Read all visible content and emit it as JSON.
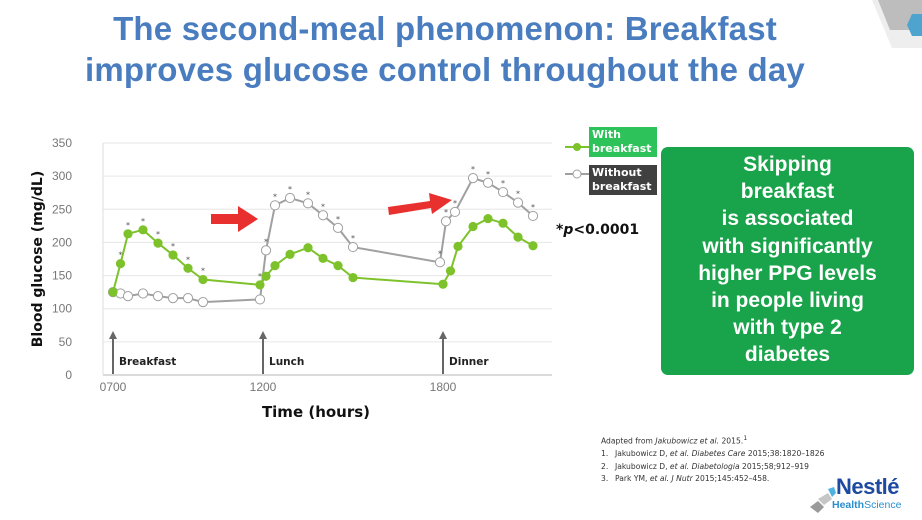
{
  "slide": {
    "title_line1": "The second-meal phenomenon: Breakfast",
    "title_line2": "improves glucose control throughout the day",
    "colors": {
      "title": "#4a7dbf",
      "with_breakfast": "#7dc22b",
      "without_breakfast": "#a0a0a0",
      "callout_bg": "#19a34a",
      "arrow": "#e8302f"
    }
  },
  "legend": {
    "with_label_1": "With",
    "with_label_2": "breakfast",
    "without_label_1": "Without",
    "without_label_2": "breakfast"
  },
  "significance": {
    "star": "*",
    "p": "p",
    "value": "<0.0001"
  },
  "callout": {
    "lines": [
      "Skipping",
      "breakfast",
      "is associated",
      "with significantly",
      "higher PPG levels",
      "in people living",
      "with type 2",
      "diabetes"
    ]
  },
  "references": {
    "adapted_prefix": "Adapted from ",
    "adapted_author": "Jakubowicz et al.",
    "adapted_year": " 2015.",
    "adapted_sup": "1",
    "items": [
      {
        "num": "1.",
        "author": "Jakubowicz D, ",
        "etal": "et al.",
        "journal": " Diabetes Care",
        "rest": " 2015;38:1820–1826"
      },
      {
        "num": "2.",
        "author": "Jakubowicz D, ",
        "etal": "et al.",
        "journal": " Diabetologia",
        "rest": " 2015;58;912–919"
      },
      {
        "num": "3.",
        "author": "Park YM, ",
        "etal": "et al.",
        "journal": " J Nutr",
        "rest": " 2015;145:452–458."
      }
    ]
  },
  "logo": {
    "brand": "Nestlé",
    "sub_bold": "Health",
    "sub_normal": "Science"
  },
  "chart_data": {
    "type": "line",
    "title": "",
    "xlabel": "Time (hours)",
    "ylabel": "Blood glucose (mg/dL)",
    "ylim": [
      0,
      350
    ],
    "yticks": [
      0,
      50,
      100,
      150,
      200,
      250,
      300,
      350
    ],
    "xticks": [
      "0700",
      "1200",
      "1800"
    ],
    "grid": true,
    "legend_position": "right",
    "meal_markers": [
      {
        "label": "Breakfast",
        "time": "0700"
      },
      {
        "label": "Lunch",
        "time": "1200"
      },
      {
        "label": "Dinner",
        "time": "1800"
      }
    ],
    "annotation": "*p<0.0001",
    "series": [
      {
        "name": "With breakfast",
        "color": "#7dc22b",
        "marker": "filled-circle",
        "x_hours": [
          7.0,
          7.25,
          7.5,
          8.0,
          8.5,
          9.0,
          9.5,
          10.0,
          11.9,
          12.1,
          12.4,
          12.9,
          13.5,
          14.0,
          14.5,
          15.0,
          18.0,
          18.25,
          18.5,
          19.0,
          19.5,
          20.0,
          20.5,
          21.0
        ],
        "values": [
          125,
          168,
          213,
          219,
          199,
          181,
          161,
          144,
          136,
          149,
          165,
          182,
          192,
          176,
          165,
          147,
          137,
          157,
          194,
          224,
          236,
          229,
          208,
          195
        ]
      },
      {
        "name": "Without breakfast",
        "color": "#a0a0a0",
        "marker": "open-circle",
        "x_hours": [
          7.0,
          7.25,
          7.5,
          8.0,
          8.5,
          9.0,
          9.5,
          10.0,
          11.9,
          12.1,
          12.4,
          12.9,
          13.5,
          14.0,
          14.5,
          15.0,
          17.9,
          18.1,
          18.4,
          19.0,
          19.5,
          20.0,
          20.5,
          21.0
        ],
        "values": [
          125,
          123,
          119,
          123,
          119,
          116,
          116,
          110,
          114,
          188,
          256,
          267,
          259,
          241,
          222,
          193,
          170,
          232,
          246,
          297,
          290,
          276,
          260,
          240
        ]
      }
    ],
    "significance_stars": {
      "With breakfast": [
        false,
        true,
        true,
        true,
        true,
        true,
        true,
        true,
        true,
        false,
        false,
        false,
        false,
        false,
        false,
        false,
        false,
        false,
        false,
        false,
        false,
        false,
        false,
        false
      ],
      "Without breakfast": [
        false,
        false,
        false,
        false,
        false,
        false,
        false,
        false,
        false,
        true,
        true,
        true,
        true,
        true,
        true,
        true,
        true,
        true,
        true,
        true,
        true,
        true,
        true,
        true
      ]
    }
  }
}
